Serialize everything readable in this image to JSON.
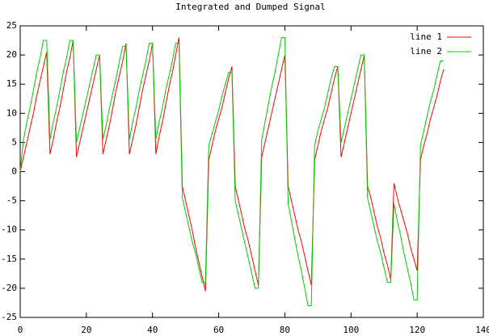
{
  "chart_data": {
    "type": "line",
    "title": "Integrated and Dumped Signal",
    "x": [
      0,
      1,
      2,
      3,
      4,
      5,
      6,
      7,
      8,
      9,
      10,
      11,
      12,
      13,
      14,
      15,
      16,
      17,
      18,
      19,
      20,
      21,
      22,
      23,
      24,
      25,
      26,
      27,
      28,
      29,
      30,
      31,
      32,
      33,
      34,
      35,
      36,
      37,
      38,
      39,
      40,
      41,
      42,
      43,
      44,
      45,
      46,
      47,
      48,
      49,
      50,
      51,
      52,
      53,
      54,
      55,
      56,
      57,
      58,
      59,
      60,
      61,
      62,
      63,
      64,
      65,
      66,
      67,
      68,
      69,
      70,
      71,
      72,
      73,
      74,
      75,
      76,
      77,
      78,
      79,
      80,
      81,
      82,
      83,
      84,
      85,
      86,
      87,
      88,
      89,
      90,
      91,
      92,
      93,
      94,
      95,
      96,
      97,
      98,
      99,
      100,
      101,
      102,
      103,
      104,
      105,
      106,
      107,
      108,
      109,
      110,
      111,
      112,
      113,
      114,
      115,
      116,
      117,
      118,
      119,
      120,
      121,
      122,
      123,
      124,
      125,
      126,
      127,
      128
    ],
    "series": [
      {
        "name": "line 1",
        "color": "#ff0000",
        "values": [
          0,
          2.5,
          5,
          7.5,
          10,
          13,
          15.5,
          18,
          20.5,
          3,
          5.5,
          8.5,
          11,
          14,
          17,
          19.5,
          22.5,
          2.5,
          5,
          7.5,
          10,
          12.5,
          15,
          17.5,
          20,
          3,
          5.5,
          8,
          11,
          14,
          16.5,
          19,
          22,
          3,
          5.5,
          8,
          11,
          14,
          16.5,
          19,
          22,
          3,
          6,
          8.5,
          11.5,
          14.5,
          17,
          20,
          23,
          -2.5,
          -5,
          -7.5,
          -10,
          -13,
          -15.5,
          -18,
          -20.5,
          2,
          4.5,
          7,
          9,
          11,
          13.5,
          16,
          18,
          -2.5,
          -5,
          -7.5,
          -10,
          -12,
          -14.5,
          -17,
          -19.5,
          2.5,
          5,
          7.5,
          10,
          12.5,
          15,
          17.5,
          20,
          -2.5,
          -5,
          -7.5,
          -10,
          -12,
          -14.5,
          -17,
          -19.5,
          2,
          4.5,
          7,
          9,
          11,
          13.5,
          16,
          18,
          2.5,
          5,
          7.5,
          10,
          12.5,
          15,
          17.5,
          20,
          -2.5,
          -4.5,
          -7,
          -9.5,
          -11.5,
          -14,
          -16,
          -18.5,
          -2,
          -4.5,
          -6.5,
          -8.5,
          -10.5,
          -13,
          -15,
          -17,
          2,
          4.5,
          6.5,
          9,
          11,
          13,
          15.5,
          17.5
        ]
      },
      {
        "name": "line 2",
        "color": "#00cc00",
        "values": [
          0,
          5.5,
          8.5,
          11,
          14,
          17,
          19.5,
          22.5,
          22.5,
          5.5,
          8.5,
          11,
          14,
          17,
          19.5,
          22.5,
          22.5,
          5,
          7.5,
          10,
          12.5,
          15,
          17.5,
          20,
          20,
          5.5,
          8,
          11,
          13.5,
          16,
          19,
          21.5,
          21.5,
          5.5,
          8.5,
          11,
          14,
          16.5,
          19,
          22,
          22,
          5.5,
          8.5,
          11,
          14,
          16.5,
          19,
          22,
          22,
          -4.5,
          -7,
          -9.5,
          -12,
          -14,
          -16.5,
          -19,
          -19,
          4.5,
          6.5,
          8.5,
          10.5,
          13,
          15,
          17,
          17,
          -5,
          -7.5,
          -10,
          -12.5,
          -15,
          -17.5,
          -20,
          -20,
          5.5,
          8.5,
          11.5,
          14.5,
          17,
          20,
          23,
          23,
          -5.5,
          -8.5,
          -11.5,
          -14.5,
          -17,
          -20,
          -23,
          -23,
          4.5,
          7,
          9,
          11,
          13.5,
          16,
          18,
          18,
          5,
          7.5,
          10,
          12.5,
          15,
          17.5,
          20,
          20,
          -4.5,
          -7,
          -9.5,
          -12,
          -14,
          -16.5,
          -19,
          -19,
          -5.5,
          -8.5,
          -11,
          -14,
          -16.5,
          -19,
          -22,
          -22,
          4.5,
          7,
          9.5,
          12,
          14,
          16.5,
          19,
          19
        ]
      }
    ],
    "xlim": [
      0,
      140
    ],
    "xticks": [
      0,
      20,
      40,
      60,
      80,
      100,
      120,
      140
    ],
    "ylim": [
      -25,
      25
    ],
    "yticks": [
      -25,
      -20,
      -15,
      -10,
      -5,
      0,
      5,
      10,
      15,
      20,
      25
    ],
    "legend": "top-right"
  }
}
